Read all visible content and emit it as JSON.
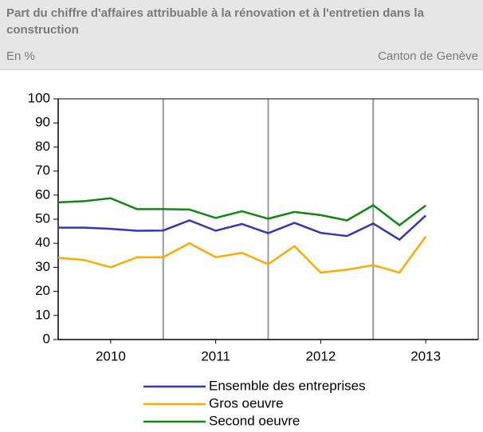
{
  "chart_data": {
    "type": "line",
    "title": "Part du chiffre d'affaires attribuable à la rénovation et à l'entretien dans la construction",
    "subtitle": "En %",
    "source": "Canton de Genève",
    "x": [
      2009.5,
      2009.75,
      2010,
      2010.25,
      2010.5,
      2010.75,
      2011,
      2011.25,
      2011.5,
      2011.75,
      2012,
      2012.25,
      2012.5,
      2012.75,
      2013
    ],
    "xlim": [
      2009.5,
      2013.5
    ],
    "xticks": [
      2010,
      2011,
      2012,
      2013
    ],
    "ylim": [
      0,
      100
    ],
    "yticks": [
      0,
      10,
      20,
      30,
      40,
      50,
      60,
      70,
      80,
      90,
      100
    ],
    "series": [
      {
        "name": "Ensemble des entreprises",
        "color": "#3535b5",
        "values": [
          46.5,
          46.5,
          46,
          45.2,
          45.3,
          49.5,
          45.2,
          48,
          44.2,
          48.5,
          44.3,
          43,
          48.2,
          41.5,
          51.5
        ]
      },
      {
        "name": "Gros oeuvre",
        "color": "#ffaa00",
        "values": [
          34,
          33,
          30,
          34.2,
          34.2,
          40,
          34.2,
          36,
          31.3,
          38.8,
          27.8,
          29,
          30.9,
          27.8,
          42.8
        ]
      },
      {
        "name": "Second oeuvre",
        "color": "#118811",
        "values": [
          57,
          57.5,
          58.7,
          54.2,
          54.2,
          54,
          50.5,
          53.3,
          50.2,
          53,
          51.7,
          49.5,
          55.8,
          47.5,
          55.7
        ]
      }
    ]
  }
}
